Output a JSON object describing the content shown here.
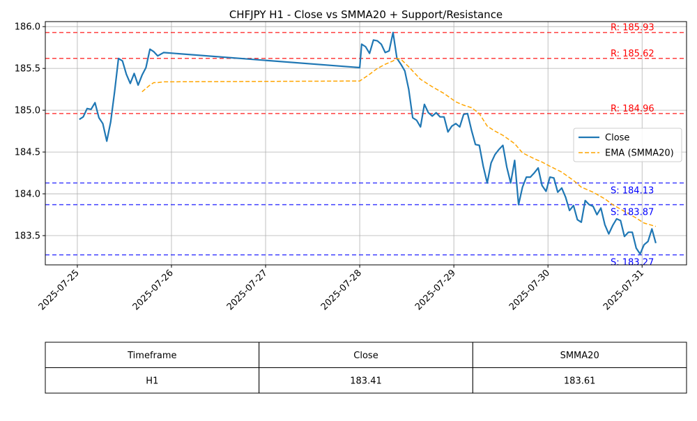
{
  "chart_data": {
    "type": "line",
    "title": "CHFJPY H1 - Close vs SMMA20 + Support/Resistance",
    "xlabel": "",
    "ylabel": "",
    "x_tick_labels": [
      "2025-07-25",
      "2025-07-26",
      "2025-07-27",
      "2025-07-28",
      "2025-07-29",
      "2025-07-30",
      "2025-07-31"
    ],
    "x_tick_values": [
      "2025-07-25T00:00",
      "2025-07-26T00:00",
      "2025-07-27T00:00",
      "2025-07-28T00:00",
      "2025-07-29T00:00",
      "2025-07-30T00:00",
      "2025-07-31T00:00"
    ],
    "xlim": [
      "2025-07-24T15:50",
      "2025-07-31T11:20"
    ],
    "y_ticks": [
      "183.5",
      "184.0",
      "184.5",
      "185.0",
      "185.5",
      "186.0"
    ],
    "ylim": [
      183.15,
      186.06
    ],
    "grid": true,
    "legend_position": "center-right",
    "series": [
      {
        "name": "Close",
        "color": "#1f77b4",
        "style": "solid",
        "points": [
          [
            "2025-07-25T00:30",
            184.89
          ],
          [
            "2025-07-25T01:30",
            184.92
          ],
          [
            "2025-07-25T02:30",
            185.02
          ],
          [
            "2025-07-25T03:30",
            185.01
          ],
          [
            "2025-07-25T04:30",
            185.09
          ],
          [
            "2025-07-25T05:30",
            184.91
          ],
          [
            "2025-07-25T06:30",
            184.84
          ],
          [
            "2025-07-25T07:30",
            184.63
          ],
          [
            "2025-07-25T08:30",
            184.86
          ],
          [
            "2025-07-25T09:30",
            185.22
          ],
          [
            "2025-07-25T10:30",
            185.62
          ],
          [
            "2025-07-25T11:30",
            185.59
          ],
          [
            "2025-07-25T12:30",
            185.43
          ],
          [
            "2025-07-25T13:30",
            185.32
          ],
          [
            "2025-07-25T14:30",
            185.44
          ],
          [
            "2025-07-25T15:30",
            185.3
          ],
          [
            "2025-07-25T16:30",
            185.42
          ],
          [
            "2025-07-25T17:30",
            185.51
          ],
          [
            "2025-07-25T18:30",
            185.73
          ],
          [
            "2025-07-25T19:30",
            185.7
          ],
          [
            "2025-07-25T20:30",
            185.65
          ],
          [
            "2025-07-25T22:00",
            185.69
          ],
          [
            "2025-07-28T00:00",
            185.51
          ],
          [
            "2025-07-28T00:30",
            185.79
          ],
          [
            "2025-07-28T01:30",
            185.76
          ],
          [
            "2025-07-28T02:30",
            185.68
          ],
          [
            "2025-07-28T03:30",
            185.84
          ],
          [
            "2025-07-28T04:30",
            185.83
          ],
          [
            "2025-07-28T05:30",
            185.79
          ],
          [
            "2025-07-28T06:30",
            185.69
          ],
          [
            "2025-07-28T07:30",
            185.71
          ],
          [
            "2025-07-28T08:30",
            185.93
          ],
          [
            "2025-07-28T09:30",
            185.62
          ],
          [
            "2025-07-28T10:30",
            185.55
          ],
          [
            "2025-07-28T11:30",
            185.47
          ],
          [
            "2025-07-28T12:30",
            185.25
          ],
          [
            "2025-07-28T13:30",
            184.91
          ],
          [
            "2025-07-28T14:30",
            184.88
          ],
          [
            "2025-07-28T15:30",
            184.8
          ],
          [
            "2025-07-28T16:30",
            185.07
          ],
          [
            "2025-07-28T17:30",
            184.97
          ],
          [
            "2025-07-28T18:30",
            184.93
          ],
          [
            "2025-07-28T19:30",
            184.97
          ],
          [
            "2025-07-28T20:30",
            184.92
          ],
          [
            "2025-07-28T21:30",
            184.92
          ],
          [
            "2025-07-28T22:30",
            184.74
          ],
          [
            "2025-07-28T23:30",
            184.81
          ],
          [
            "2025-07-29T00:30",
            184.84
          ],
          [
            "2025-07-29T01:30",
            184.8
          ],
          [
            "2025-07-29T02:30",
            184.95
          ],
          [
            "2025-07-29T03:30",
            184.96
          ],
          [
            "2025-07-29T04:30",
            184.76
          ],
          [
            "2025-07-29T05:30",
            184.59
          ],
          [
            "2025-07-29T06:30",
            184.58
          ],
          [
            "2025-07-29T07:30",
            184.33
          ],
          [
            "2025-07-29T08:30",
            184.13
          ],
          [
            "2025-07-29T09:30",
            184.37
          ],
          [
            "2025-07-29T10:30",
            184.47
          ],
          [
            "2025-07-29T11:30",
            184.53
          ],
          [
            "2025-07-29T12:30",
            184.58
          ],
          [
            "2025-07-29T13:30",
            184.32
          ],
          [
            "2025-07-29T14:30",
            184.13
          ],
          [
            "2025-07-29T15:30",
            184.4
          ],
          [
            "2025-07-29T16:30",
            183.87
          ],
          [
            "2025-07-29T17:30",
            184.08
          ],
          [
            "2025-07-29T18:30",
            184.2
          ],
          [
            "2025-07-29T19:30",
            184.2
          ],
          [
            "2025-07-29T20:30",
            184.25
          ],
          [
            "2025-07-29T21:30",
            184.31
          ],
          [
            "2025-07-29T22:30",
            184.1
          ],
          [
            "2025-07-29T23:30",
            184.03
          ],
          [
            "2025-07-30T00:30",
            184.2
          ],
          [
            "2025-07-30T01:30",
            184.19
          ],
          [
            "2025-07-30T02:30",
            184.02
          ],
          [
            "2025-07-30T03:30",
            184.07
          ],
          [
            "2025-07-30T04:30",
            183.96
          ],
          [
            "2025-07-30T05:30",
            183.8
          ],
          [
            "2025-07-30T06:30",
            183.86
          ],
          [
            "2025-07-30T07:30",
            183.69
          ],
          [
            "2025-07-30T08:30",
            183.66
          ],
          [
            "2025-07-30T09:30",
            183.92
          ],
          [
            "2025-07-30T10:30",
            183.87
          ],
          [
            "2025-07-30T11:30",
            183.85
          ],
          [
            "2025-07-30T12:30",
            183.75
          ],
          [
            "2025-07-30T13:30",
            183.83
          ],
          [
            "2025-07-30T14:30",
            183.63
          ],
          [
            "2025-07-30T15:30",
            183.52
          ],
          [
            "2025-07-30T16:30",
            183.62
          ],
          [
            "2025-07-30T17:30",
            183.7
          ],
          [
            "2025-07-30T18:30",
            183.68
          ],
          [
            "2025-07-30T19:30",
            183.49
          ],
          [
            "2025-07-30T20:30",
            183.54
          ],
          [
            "2025-07-30T21:30",
            183.54
          ],
          [
            "2025-07-30T22:30",
            183.35
          ],
          [
            "2025-07-30T23:30",
            183.28
          ],
          [
            "2025-07-31T00:30",
            183.39
          ],
          [
            "2025-07-31T01:30",
            183.43
          ],
          [
            "2025-07-31T02:30",
            183.58
          ],
          [
            "2025-07-31T03:30",
            183.41
          ]
        ]
      },
      {
        "name": "EMA (SMMA20)",
        "color": "#ffa500",
        "style": "dashed",
        "points": [
          [
            "2025-07-25T16:30",
            185.22
          ],
          [
            "2025-07-25T17:30",
            185.26
          ],
          [
            "2025-07-25T18:30",
            185.3
          ],
          [
            "2025-07-25T19:30",
            185.33
          ],
          [
            "2025-07-25T20:30",
            185.33
          ],
          [
            "2025-07-25T22:00",
            185.34
          ],
          [
            "2025-07-28T00:00",
            185.35
          ],
          [
            "2025-07-28T02:30",
            185.43
          ],
          [
            "2025-07-28T04:30",
            185.5
          ],
          [
            "2025-07-28T06:30",
            185.55
          ],
          [
            "2025-07-28T08:30",
            185.59
          ],
          [
            "2025-07-28T09:30",
            185.62
          ],
          [
            "2025-07-28T10:30",
            185.61
          ],
          [
            "2025-07-28T12:30",
            185.52
          ],
          [
            "2025-07-28T15:30",
            185.37
          ],
          [
            "2025-07-28T18:30",
            185.28
          ],
          [
            "2025-07-28T21:30",
            185.2
          ],
          [
            "2025-07-29T00:30",
            185.1
          ],
          [
            "2025-07-29T02:30",
            185.06
          ],
          [
            "2025-07-29T04:30",
            185.03
          ],
          [
            "2025-07-29T06:30",
            184.96
          ],
          [
            "2025-07-29T08:30",
            184.81
          ],
          [
            "2025-07-29T10:30",
            184.75
          ],
          [
            "2025-07-29T12:30",
            184.7
          ],
          [
            "2025-07-29T15:30",
            184.6
          ],
          [
            "2025-07-29T17:30",
            184.49
          ],
          [
            "2025-07-29T20:30",
            184.42
          ],
          [
            "2025-07-29T22:30",
            184.38
          ],
          [
            "2025-07-30T00:30",
            184.33
          ],
          [
            "2025-07-30T03:30",
            184.26
          ],
          [
            "2025-07-30T06:30",
            184.16
          ],
          [
            "2025-07-30T08:30",
            184.08
          ],
          [
            "2025-07-30T11:30",
            184.02
          ],
          [
            "2025-07-30T14:30",
            183.94
          ],
          [
            "2025-07-30T16:30",
            183.87
          ],
          [
            "2025-07-30T19:30",
            183.79
          ],
          [
            "2025-07-30T22:30",
            183.71
          ],
          [
            "2025-07-31T00:30",
            183.65
          ],
          [
            "2025-07-31T03:30",
            183.61
          ]
        ]
      }
    ],
    "resistance_levels": [
      {
        "value": 185.93,
        "label": "R: 185.93"
      },
      {
        "value": 185.62,
        "label": "R: 185.62"
      },
      {
        "value": 184.96,
        "label": "R: 184.96"
      }
    ],
    "support_levels": [
      {
        "value": 184.13,
        "label": "S: 184.13"
      },
      {
        "value": 183.87,
        "label": "S: 183.87"
      },
      {
        "value": 183.27,
        "label": "S: 183.27"
      }
    ],
    "colors": {
      "resistance": "#ff0000",
      "support": "#0000ff",
      "close": "#1f77b4",
      "smma": "#ffa500",
      "grid": "#b0b0b0"
    }
  },
  "table": {
    "headers": [
      "Timeframe",
      "Close",
      "SMMA20"
    ],
    "rows": [
      [
        "H1",
        "183.41",
        "183.61"
      ]
    ]
  }
}
